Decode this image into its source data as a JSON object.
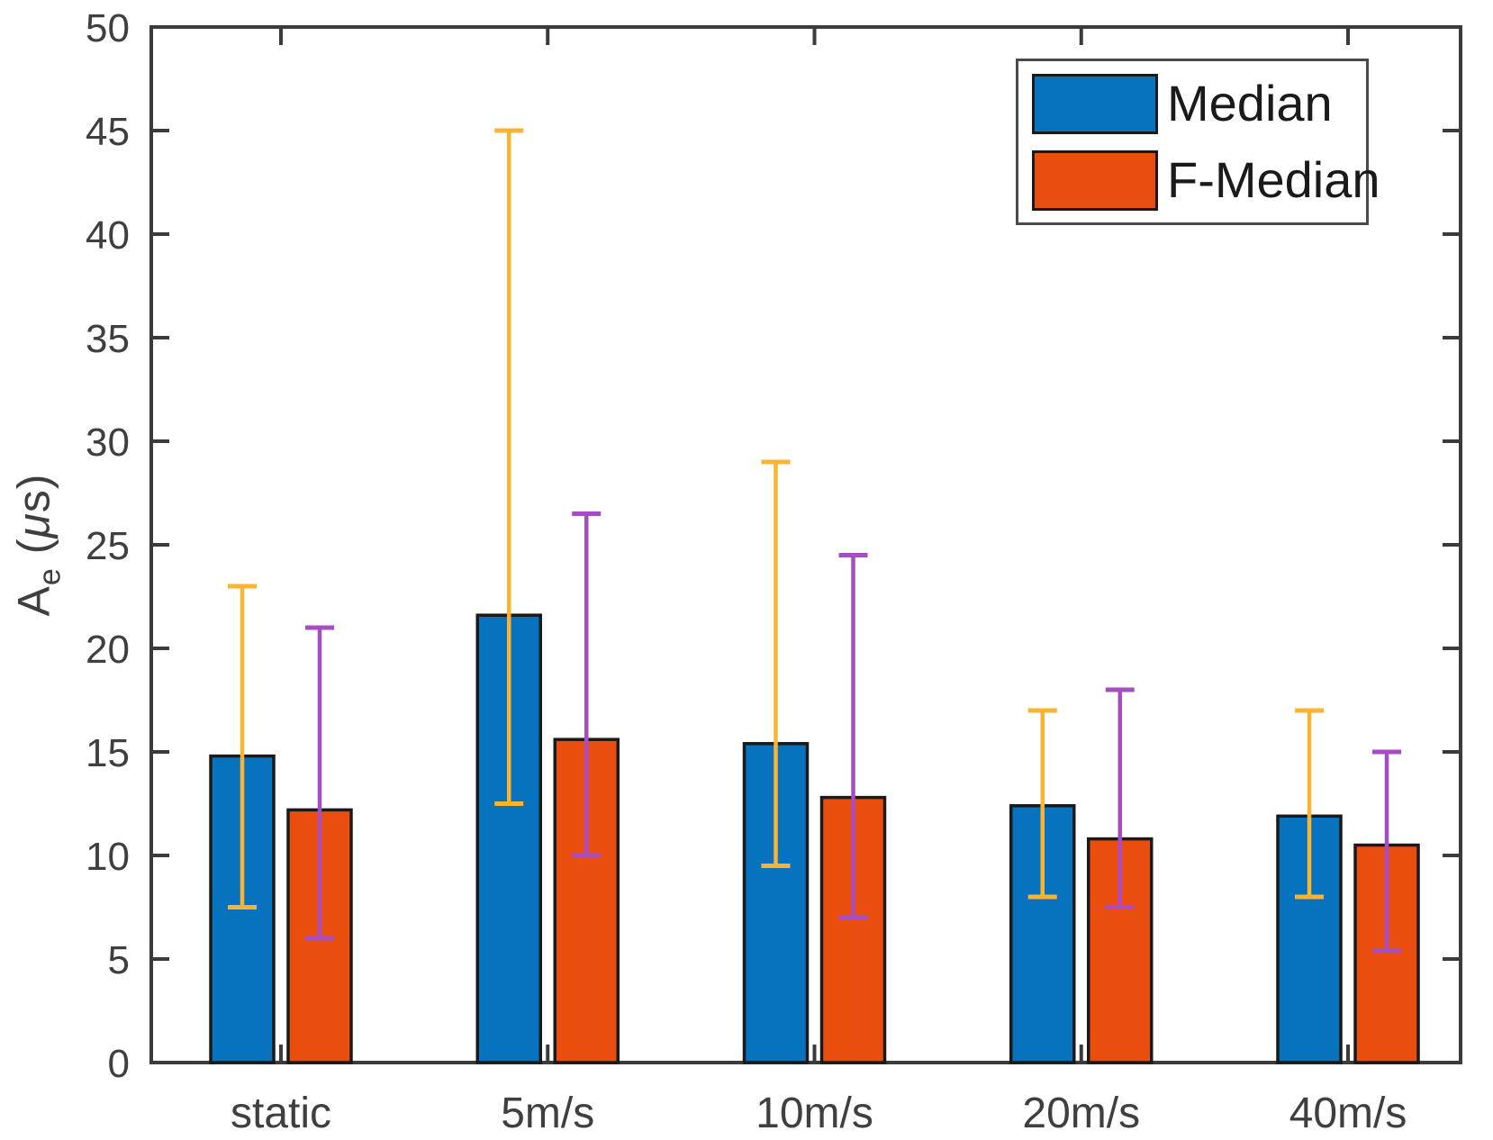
{
  "figure": {
    "background": "#ffffff",
    "axis_color": "#3b3b3b",
    "tick_label_color": "#3f3f3f",
    "bar_edge_color": "#1a1a1a"
  },
  "chart_data": {
    "type": "bar",
    "title": "",
    "xlabel": "",
    "ylabel": {
      "main": "A",
      "sub": "e",
      "unit_open": " (",
      "unit_mu": "μ",
      "unit_close": "s)"
    },
    "categories": [
      "static",
      "5m/s",
      "10m/s",
      "20m/s",
      "40m/s"
    ],
    "series": [
      {
        "name": "Median",
        "color": "#0772be",
        "error_color": "#fcb332",
        "values": [
          14.8,
          21.6,
          15.4,
          12.4,
          11.9
        ],
        "error_low": [
          7.5,
          12.5,
          9.5,
          8.0,
          8.0
        ],
        "error_high": [
          23.0,
          45.0,
          29.0,
          17.0,
          17.0
        ]
      },
      {
        "name": "F-Median",
        "color": "#ea4e0f",
        "error_color": "#a64dc3",
        "values": [
          12.2,
          15.6,
          12.8,
          10.8,
          10.5
        ],
        "error_low": [
          6.0,
          10.0,
          7.0,
          7.5,
          5.4
        ],
        "error_high": [
          21.0,
          26.5,
          24.5,
          18.0,
          15.0
        ]
      }
    ],
    "ylim": [
      0,
      50
    ],
    "yticks": [
      0,
      5,
      10,
      15,
      20,
      25,
      30,
      35,
      40,
      45,
      50
    ],
    "grid": false,
    "legend_position": "top-right",
    "error_bar_style": "min-max range with caps, drawn over bars"
  }
}
